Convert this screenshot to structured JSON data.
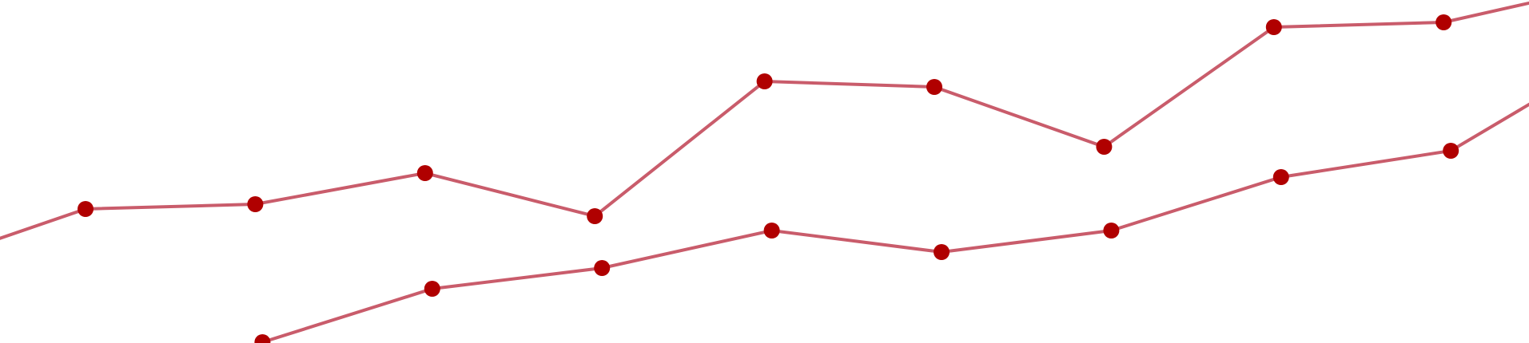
{
  "chart_data": {
    "type": "line",
    "title": "",
    "xlabel": "",
    "ylabel": "",
    "grid": false,
    "legend": "none",
    "xlim": [
      -0.5,
      8.5
    ],
    "ylim": [
      0,
      430
    ],
    "colors": {
      "line": "#c95c6b",
      "marker": "#b00000",
      "background": "#ffffff"
    },
    "series": [
      {
        "x": [
          -1,
          0,
          1,
          2,
          3,
          4,
          5,
          6,
          7,
          8,
          9
        ],
        "values": [
          95,
          168,
          174,
          213,
          159,
          328,
          321,
          246,
          396,
          402,
          450
        ]
      },
      {
        "x": [
          1,
          2,
          3,
          4,
          5,
          6,
          7,
          8,
          9
        ],
        "values": [
          1,
          68,
          94,
          141,
          114,
          141,
          208,
          241,
          367
        ]
      }
    ]
  }
}
